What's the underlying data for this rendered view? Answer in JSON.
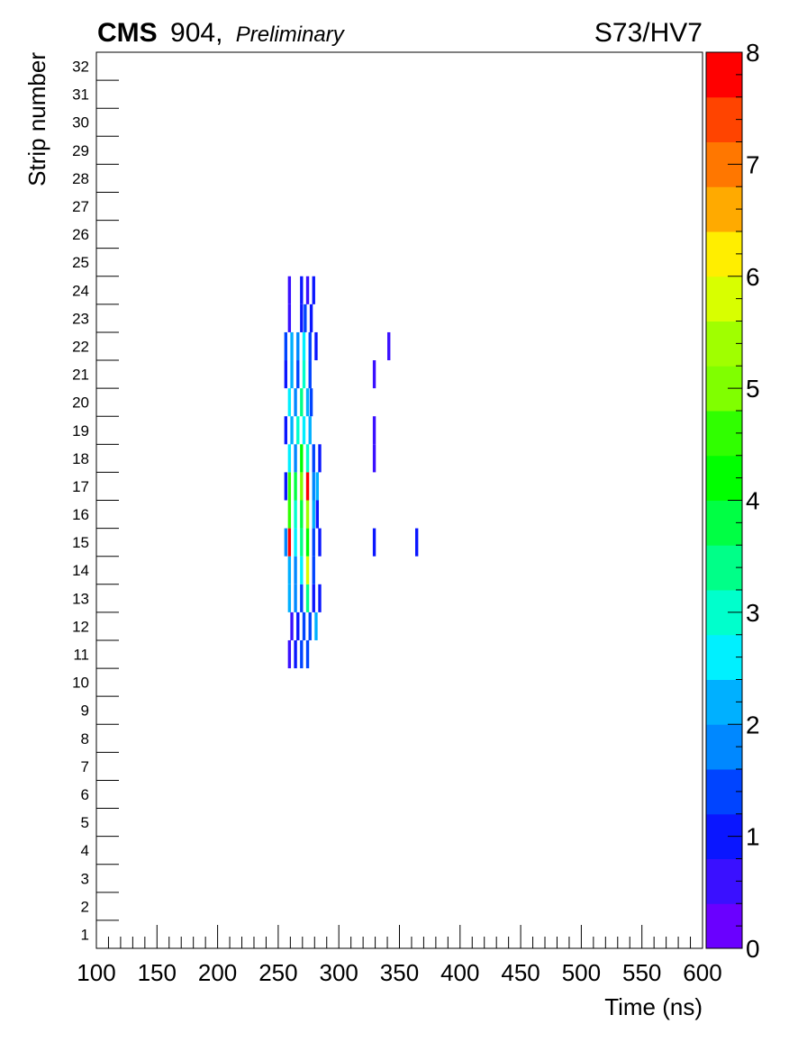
{
  "header": {
    "experiment": "CMS",
    "location": "904,",
    "status": "Preliminary",
    "run_label": "S73/HV7"
  },
  "chart_data": {
    "type": "heatmap",
    "xlabel": "Time (ns)",
    "ylabel": "Strip number",
    "xlim": [
      100,
      600
    ],
    "ylim": [
      0.5,
      32.5
    ],
    "x_ticks": [
      "100",
      "150",
      "200",
      "250",
      "300",
      "350",
      "400",
      "450",
      "500",
      "550",
      "600"
    ],
    "y_ticks": [
      "1",
      "2",
      "3",
      "4",
      "5",
      "6",
      "7",
      "8",
      "9",
      "10",
      "11",
      "12",
      "13",
      "14",
      "15",
      "16",
      "17",
      "18",
      "19",
      "20",
      "21",
      "22",
      "23",
      "24",
      "25",
      "26",
      "27",
      "28",
      "29",
      "30",
      "31",
      "32"
    ],
    "bin_width_ns": 2.5,
    "colorbar": {
      "range": [
        0,
        8
      ],
      "ticks": [
        "0",
        "1",
        "2",
        "3",
        "4",
        "5",
        "6",
        "7",
        "8"
      ],
      "levels": 20,
      "colors": [
        "#6a00ff",
        "#3a10ff",
        "#0a16ff",
        "#0044ff",
        "#0088ff",
        "#00b0ff",
        "#00f0ff",
        "#00ffcc",
        "#00ff88",
        "#00ff44",
        "#00ff00",
        "#30ff00",
        "#80ff00",
        "#a0ff00",
        "#d8ff00",
        "#ffee00",
        "#ffaa00",
        "#ff7700",
        "#ff4400",
        "#ff0000"
      ]
    },
    "cells": [
      {
        "strip": 11,
        "t": 258,
        "v": 0.6
      },
      {
        "strip": 11,
        "t": 263,
        "v": 0.8
      },
      {
        "strip": 11,
        "t": 268,
        "v": 1.2
      },
      {
        "strip": 11,
        "t": 273,
        "v": 1.4
      },
      {
        "strip": 12,
        "t": 260,
        "v": 0.6
      },
      {
        "strip": 12,
        "t": 265,
        "v": 0.8
      },
      {
        "strip": 12,
        "t": 270,
        "v": 1.2
      },
      {
        "strip": 12,
        "t": 275,
        "v": 1.4
      },
      {
        "strip": 12,
        "t": 280,
        "v": 2.2
      },
      {
        "strip": 13,
        "t": 258,
        "v": 2.0
      },
      {
        "strip": 13,
        "t": 263,
        "v": 1.6
      },
      {
        "strip": 13,
        "t": 268,
        "v": 1.2
      },
      {
        "strip": 13,
        "t": 273,
        "v": 3.2
      },
      {
        "strip": 13,
        "t": 278,
        "v": 1.0
      },
      {
        "strip": 13,
        "t": 283,
        "v": 0.8
      },
      {
        "strip": 14,
        "t": 258,
        "v": 2.2
      },
      {
        "strip": 14,
        "t": 263,
        "v": 1.8
      },
      {
        "strip": 14,
        "t": 268,
        "v": 2.4
      },
      {
        "strip": 14,
        "t": 273,
        "v": 5.6
      },
      {
        "strip": 14,
        "t": 278,
        "v": 1.2
      },
      {
        "strip": 15,
        "t": 255,
        "v": 1.8
      },
      {
        "strip": 15,
        "t": 258,
        "v": 7.8
      },
      {
        "strip": 15,
        "t": 263,
        "v": 2.6
      },
      {
        "strip": 15,
        "t": 268,
        "v": 3.4
      },
      {
        "strip": 15,
        "t": 273,
        "v": 4.2
      },
      {
        "strip": 15,
        "t": 278,
        "v": 1.4
      },
      {
        "strip": 15,
        "t": 283,
        "v": 0.8
      },
      {
        "strip": 15,
        "t": 328,
        "v": 1.0
      },
      {
        "strip": 15,
        "t": 363,
        "v": 0.8
      },
      {
        "strip": 16,
        "t": 258,
        "v": 4.4
      },
      {
        "strip": 16,
        "t": 263,
        "v": 2.8
      },
      {
        "strip": 16,
        "t": 268,
        "v": 3.6
      },
      {
        "strip": 16,
        "t": 273,
        "v": 5.2
      },
      {
        "strip": 16,
        "t": 278,
        "v": 2.2
      },
      {
        "strip": 16,
        "t": 281,
        "v": 0.8
      },
      {
        "strip": 17,
        "t": 255,
        "v": 1.0
      },
      {
        "strip": 17,
        "t": 258,
        "v": 4.6
      },
      {
        "strip": 17,
        "t": 263,
        "v": 3.8
      },
      {
        "strip": 17,
        "t": 268,
        "v": 4.8
      },
      {
        "strip": 17,
        "t": 273,
        "v": 7.6
      },
      {
        "strip": 17,
        "t": 278,
        "v": 1.8
      },
      {
        "strip": 17,
        "t": 281,
        "v": 2.2
      },
      {
        "strip": 18,
        "t": 258,
        "v": 2.6
      },
      {
        "strip": 18,
        "t": 263,
        "v": 1.8
      },
      {
        "strip": 18,
        "t": 268,
        "v": 4.2
      },
      {
        "strip": 18,
        "t": 273,
        "v": 3.0
      },
      {
        "strip": 18,
        "t": 278,
        "v": 1.4
      },
      {
        "strip": 18,
        "t": 283,
        "v": 0.8
      },
      {
        "strip": 18,
        "t": 328,
        "v": 0.6
      },
      {
        "strip": 19,
        "t": 255,
        "v": 1.0
      },
      {
        "strip": 19,
        "t": 260,
        "v": 2.2
      },
      {
        "strip": 19,
        "t": 265,
        "v": 3.0
      },
      {
        "strip": 19,
        "t": 270,
        "v": 2.4
      },
      {
        "strip": 19,
        "t": 275,
        "v": 2.0
      },
      {
        "strip": 19,
        "t": 328,
        "v": 0.6
      },
      {
        "strip": 20,
        "t": 258,
        "v": 2.4
      },
      {
        "strip": 20,
        "t": 263,
        "v": 1.6
      },
      {
        "strip": 20,
        "t": 268,
        "v": 3.2
      },
      {
        "strip": 20,
        "t": 273,
        "v": 2.2
      },
      {
        "strip": 20,
        "t": 276,
        "v": 1.2
      },
      {
        "strip": 21,
        "t": 255,
        "v": 1.0
      },
      {
        "strip": 21,
        "t": 260,
        "v": 2.2
      },
      {
        "strip": 21,
        "t": 265,
        "v": 1.4
      },
      {
        "strip": 21,
        "t": 270,
        "v": 3.0
      },
      {
        "strip": 21,
        "t": 275,
        "v": 1.2
      },
      {
        "strip": 21,
        "t": 328,
        "v": 0.6
      },
      {
        "strip": 22,
        "t": 255,
        "v": 1.2
      },
      {
        "strip": 22,
        "t": 260,
        "v": 2.0
      },
      {
        "strip": 22,
        "t": 265,
        "v": 1.6
      },
      {
        "strip": 22,
        "t": 270,
        "v": 2.6
      },
      {
        "strip": 22,
        "t": 275,
        "v": 1.4
      },
      {
        "strip": 22,
        "t": 280,
        "v": 1.0
      },
      {
        "strip": 22,
        "t": 340,
        "v": 0.6
      },
      {
        "strip": 23,
        "t": 258,
        "v": 0.6
      },
      {
        "strip": 23,
        "t": 268,
        "v": 1.0
      },
      {
        "strip": 23,
        "t": 271,
        "v": 1.4
      },
      {
        "strip": 23,
        "t": 276,
        "v": 0.8
      },
      {
        "strip": 24,
        "t": 258,
        "v": 0.6
      },
      {
        "strip": 24,
        "t": 268,
        "v": 1.0
      },
      {
        "strip": 24,
        "t": 273,
        "v": 0.6
      },
      {
        "strip": 24,
        "t": 278,
        "v": 0.8
      }
    ]
  }
}
